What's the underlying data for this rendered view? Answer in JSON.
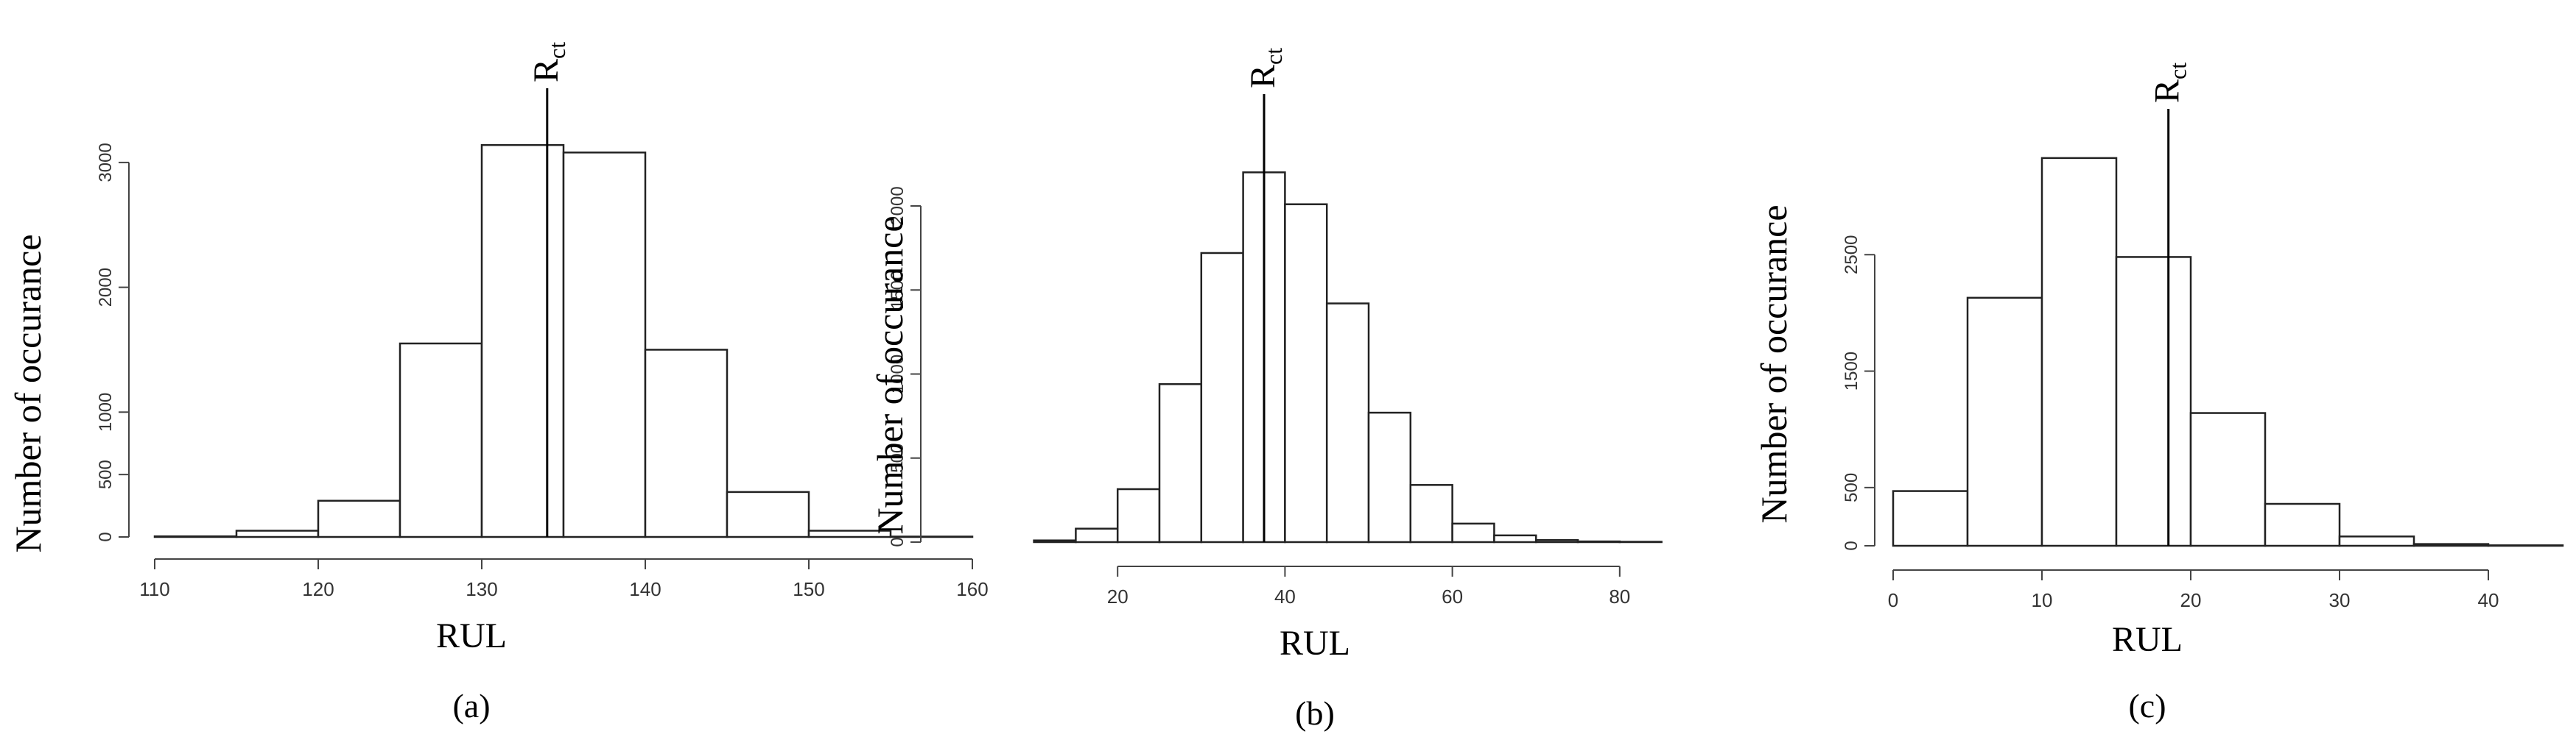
{
  "chart_data": [
    {
      "type": "bar",
      "panel_label": "(a)",
      "xlabel": "RUL",
      "ylabel": "Number of occurance",
      "xlim": [
        110,
        160
      ],
      "xticks": [
        "110",
        "120",
        "130",
        "140",
        "150",
        "160"
      ],
      "yticks": [
        "0",
        "500",
        "1000",
        "2000",
        "3000"
      ],
      "bins": [
        {
          "from": 110,
          "to": 115,
          "value": 5
        },
        {
          "from": 115,
          "to": 120,
          "value": 50
        },
        {
          "from": 120,
          "to": 125,
          "value": 290
        },
        {
          "from": 125,
          "to": 130,
          "value": 1550
        },
        {
          "from": 130,
          "to": 135,
          "value": 3140
        },
        {
          "from": 135,
          "to": 140,
          "value": 3080
        },
        {
          "from": 140,
          "to": 145,
          "value": 1500
        },
        {
          "from": 145,
          "to": 150,
          "value": 360
        },
        {
          "from": 150,
          "to": 155,
          "value": 50
        },
        {
          "from": 155,
          "to": 160,
          "value": 3
        }
      ],
      "marker": {
        "label": "R",
        "subscript": "ct",
        "x": 134
      }
    },
    {
      "type": "bar",
      "panel_label": "(b)",
      "xlabel": "RUL",
      "ylabel": "Number of occurance",
      "xticks": [
        "20",
        "40",
        "60",
        "80"
      ],
      "yticks": [
        "0",
        "500",
        "1000",
        "1500",
        "2000"
      ],
      "bins": [
        {
          "from": 10,
          "to": 15,
          "value": 10
        },
        {
          "from": 15,
          "to": 20,
          "value": 80
        },
        {
          "from": 20,
          "to": 25,
          "value": 315
        },
        {
          "from": 25,
          "to": 30,
          "value": 940
        },
        {
          "from": 30,
          "to": 35,
          "value": 1720
        },
        {
          "from": 35,
          "to": 40,
          "value": 2200
        },
        {
          "from": 40,
          "to": 45,
          "value": 2010
        },
        {
          "from": 45,
          "to": 50,
          "value": 1420
        },
        {
          "from": 50,
          "to": 55,
          "value": 770
        },
        {
          "from": 55,
          "to": 60,
          "value": 340
        },
        {
          "from": 60,
          "to": 65,
          "value": 110
        },
        {
          "from": 65,
          "to": 70,
          "value": 40
        },
        {
          "from": 70,
          "to": 75,
          "value": 12
        },
        {
          "from": 75,
          "to": 80,
          "value": 4
        },
        {
          "from": 80,
          "to": 85,
          "value": 2
        }
      ],
      "marker": {
        "label": "R",
        "subscript": "ct",
        "x": 37.5
      }
    },
    {
      "type": "bar",
      "panel_label": "(c)",
      "xlabel": "RUL",
      "ylabel": "Number of occurance",
      "xticks": [
        "0",
        "10",
        "20",
        "30",
        "40"
      ],
      "yticks": [
        "0",
        "500",
        "1500",
        "2500"
      ],
      "bins": [
        {
          "from": 0,
          "to": 5,
          "value": 470
        },
        {
          "from": 5,
          "to": 10,
          "value": 2130
        },
        {
          "from": 10,
          "to": 15,
          "value": 3330
        },
        {
          "from": 15,
          "to": 20,
          "value": 2480
        },
        {
          "from": 20,
          "to": 25,
          "value": 1140
        },
        {
          "from": 25,
          "to": 30,
          "value": 360
        },
        {
          "from": 30,
          "to": 35,
          "value": 80
        },
        {
          "from": 35,
          "to": 40,
          "value": 15
        },
        {
          "from": 40,
          "to": 45,
          "value": 4
        }
      ],
      "marker": {
        "label": "R",
        "subscript": "ct",
        "x": 18.5
      }
    }
  ]
}
